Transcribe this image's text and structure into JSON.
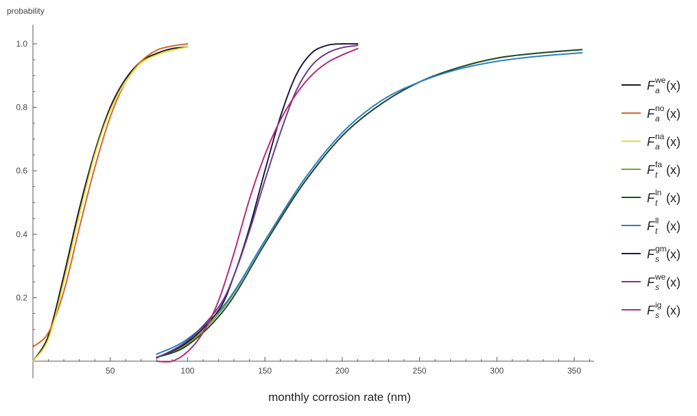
{
  "chart_data": {
    "type": "line",
    "title": "",
    "xlabel": "monthly corrosion rate (nm)",
    "ylabel": "probability",
    "xlim": [
      0,
      360
    ],
    "ylim": [
      0,
      1.05
    ],
    "xticks": [
      50,
      100,
      150,
      200,
      250,
      300,
      350
    ],
    "yticks": [
      0.2,
      0.4,
      0.6,
      0.8,
      1.0
    ],
    "ytick_labels": [
      "0.2",
      "0.4",
      "0.6",
      "0.8",
      "1.0"
    ],
    "grid": false,
    "legend_position": "right",
    "series": [
      {
        "name": "F_a^we(x)",
        "base": "F",
        "sub": "a",
        "sup": "we",
        "arg": "(x)",
        "color": "#1a1a1a",
        "x": [
          0,
          10,
          20,
          30,
          40,
          50,
          60,
          70,
          80,
          90,
          100
        ],
        "y": [
          0.0,
          0.08,
          0.27,
          0.48,
          0.66,
          0.8,
          0.89,
          0.945,
          0.97,
          0.985,
          0.99
        ]
      },
      {
        "name": "F_a^no(x)",
        "base": "F",
        "sub": "a",
        "sup": "no",
        "arg": "(x)",
        "color": "#d4662a",
        "x": [
          0,
          10,
          20,
          30,
          40,
          50,
          60,
          70,
          80,
          90,
          100
        ],
        "y": [
          0.045,
          0.09,
          0.22,
          0.42,
          0.61,
          0.77,
          0.88,
          0.945,
          0.98,
          0.993,
          1.0
        ]
      },
      {
        "name": "F_a^na(x)",
        "base": "F",
        "sub": "a",
        "sup": "na",
        "arg": "(x)",
        "color": "#e6dc3c",
        "x": [
          0,
          10,
          20,
          30,
          40,
          50,
          60,
          70,
          80,
          90,
          100
        ],
        "y": [
          0.0,
          0.07,
          0.25,
          0.46,
          0.65,
          0.79,
          0.88,
          0.94,
          0.965,
          0.98,
          0.99
        ]
      },
      {
        "name": "F_t^fa(x)",
        "base": "F",
        "sub": "t",
        "sup": "fa",
        "arg": "(x)",
        "color": "#78a02a",
        "x": [
          80,
          100,
          125,
          150,
          175,
          200,
          225,
          250,
          275,
          300,
          325,
          355
        ],
        "y": [
          0.012,
          0.055,
          0.18,
          0.38,
          0.56,
          0.71,
          0.81,
          0.88,
          0.925,
          0.955,
          0.97,
          0.982
        ]
      },
      {
        "name": "F_t^ln(x)",
        "base": "F",
        "sub": "t",
        "sup": "ln",
        "arg": "(x)",
        "color": "#1e4a2e",
        "x": [
          80,
          100,
          125,
          150,
          175,
          200,
          225,
          250,
          275,
          300,
          325,
          355
        ],
        "y": [
          0.012,
          0.05,
          0.17,
          0.37,
          0.56,
          0.71,
          0.81,
          0.88,
          0.925,
          0.955,
          0.97,
          0.982
        ]
      },
      {
        "name": "F_t^ll(x)",
        "base": "F",
        "sub": "t",
        "sup": "ll",
        "arg": "(x)",
        "color": "#2a7ec4",
        "x": [
          80,
          100,
          125,
          150,
          175,
          200,
          225,
          250,
          275,
          300,
          325,
          355
        ],
        "y": [
          0.022,
          0.07,
          0.185,
          0.38,
          0.57,
          0.72,
          0.82,
          0.88,
          0.92,
          0.945,
          0.96,
          0.972
        ]
      },
      {
        "name": "F_s^gm(x)",
        "base": "F",
        "sub": "s",
        "sup": "gm",
        "arg": "(x)",
        "color": "#1c1a40",
        "x": [
          80,
          100,
          120,
          130,
          140,
          150,
          160,
          170,
          180,
          190,
          200,
          210
        ],
        "y": [
          0.01,
          0.06,
          0.16,
          0.27,
          0.42,
          0.6,
          0.77,
          0.9,
          0.97,
          0.995,
          1.0,
          1.0
        ]
      },
      {
        "name": "F_s^we(x)",
        "base": "F",
        "sub": "s",
        "sup": "we",
        "arg": "(x)",
        "color": "#6a3a8a",
        "x": [
          80,
          100,
          120,
          130,
          140,
          150,
          160,
          170,
          180,
          190,
          200,
          210
        ],
        "y": [
          0.01,
          0.065,
          0.17,
          0.27,
          0.41,
          0.57,
          0.72,
          0.85,
          0.93,
          0.97,
          0.988,
          0.995
        ]
      },
      {
        "name": "F_s^ig(x)",
        "base": "F",
        "sub": "s",
        "sup": "ig",
        "arg": "(x)",
        "color": "#b82878",
        "x": [
          80,
          90,
          100,
          110,
          120,
          130,
          140,
          150,
          160,
          170,
          180,
          190,
          200,
          210
        ],
        "y": [
          0.0,
          0.0,
          0.03,
          0.09,
          0.19,
          0.34,
          0.51,
          0.65,
          0.76,
          0.84,
          0.9,
          0.94,
          0.965,
          0.985
        ]
      }
    ]
  }
}
